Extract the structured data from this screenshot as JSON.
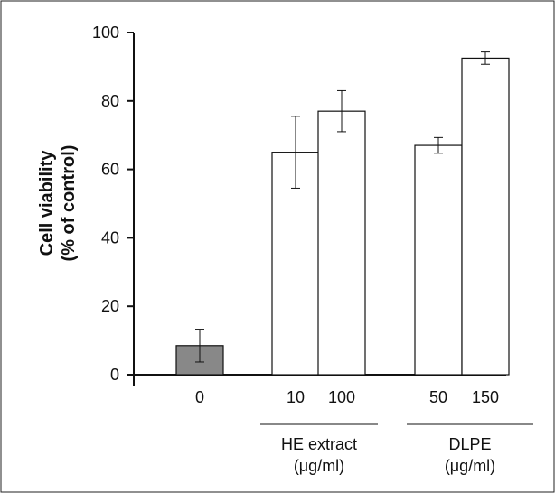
{
  "chart_data": {
    "type": "bar",
    "title": "",
    "xlabel": "",
    "ylabel": [
      "Cell viability",
      "(% of control)"
    ],
    "ylim": [
      0,
      100
    ],
    "yticks": [
      0,
      20,
      40,
      60,
      80,
      100
    ],
    "grid": false,
    "categories": [
      "0",
      "10",
      "100",
      "50",
      "150"
    ],
    "values": [
      8.5,
      65,
      77,
      67,
      92.5
    ],
    "errors": [
      4.8,
      10.5,
      6,
      2.3,
      1.8
    ],
    "bar_colors": [
      "#888888",
      "#ffffff",
      "#ffffff",
      "#ffffff",
      "#ffffff"
    ],
    "groups": [
      {
        "label": [
          "HE extract",
          "(μg/ml)"
        ],
        "categories": [
          "10",
          "100"
        ]
      },
      {
        "label": [
          "DLPE",
          "(μg/ml)"
        ],
        "categories": [
          "50",
          "150"
        ]
      }
    ]
  }
}
